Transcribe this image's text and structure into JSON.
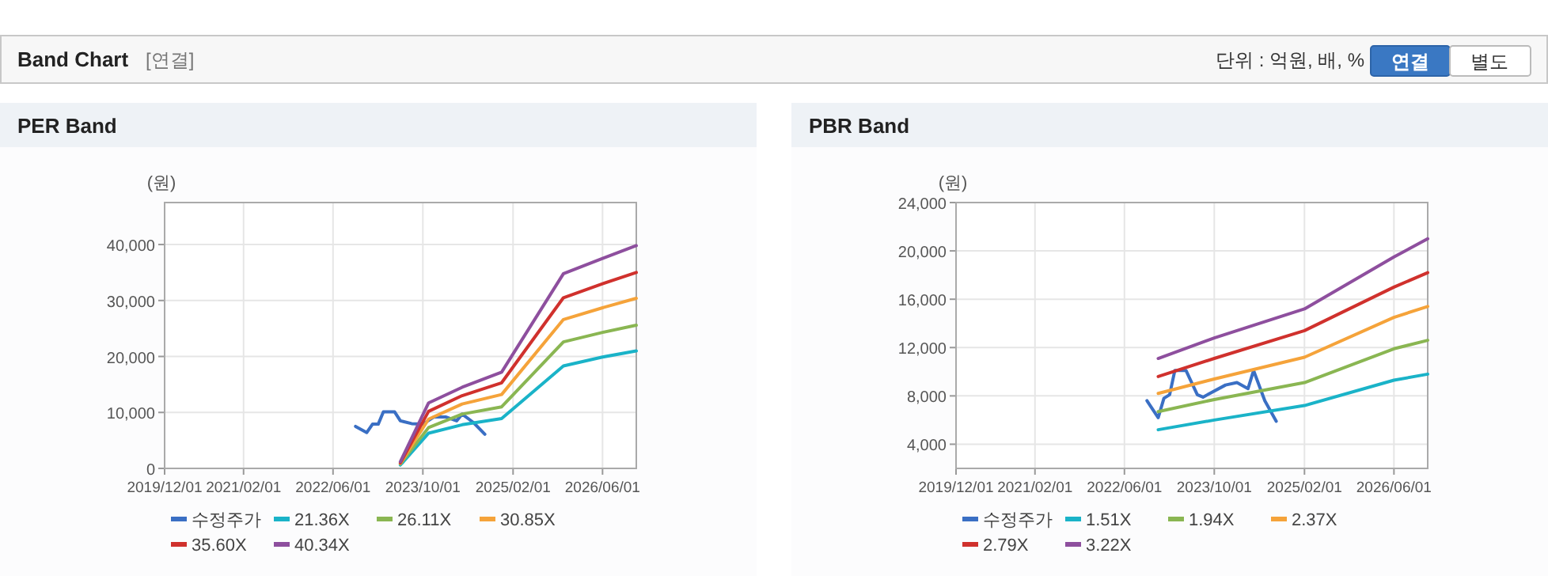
{
  "chart_data": [
    {
      "type": "other",
      "title": "Band Chart",
      "annotations": [
        "[연결]",
        "단위 : 억원, 배, %",
        "연결",
        "별도"
      ]
    },
    {
      "type": "line",
      "title": "PER Band",
      "ylabel": "(원)",
      "xlim": [
        "2019-12-01",
        "2026-12-01"
      ],
      "xticks": [
        {
          "value": "2019-12-01",
          "label": "2019/12/01"
        },
        {
          "value": "2021-02-01",
          "label": "2021/02/01"
        },
        {
          "value": "2022-06-01",
          "label": "2022/06/01"
        },
        {
          "value": "2023-10-01",
          "label": "2023/10/01"
        },
        {
          "value": "2025-02-01",
          "label": "2025/02/01"
        },
        {
          "value": "2026-06-01",
          "label": "2026/06/01"
        }
      ],
      "ylim": [
        0,
        47500
      ],
      "yticks": [
        {
          "value": 0,
          "label": "0"
        },
        {
          "value": 10000,
          "label": "10,000"
        },
        {
          "value": 20000,
          "label": "20,000"
        },
        {
          "value": 30000,
          "label": "30,000"
        },
        {
          "value": 40000,
          "label": "40,000"
        }
      ],
      "grid": true,
      "legend": "bottom",
      "line_style": "solid",
      "series": [
        {
          "name": "수정주가",
          "color": "#3a6fc4",
          "x": [
            "2022-10",
            "2022-12",
            "2023-01",
            "2023-02",
            "2023-03",
            "2023-05",
            "2023-06",
            "2023-08",
            "2023-10",
            "2023-12",
            "2024-02",
            "2024-04",
            "2024-05",
            "2024-07",
            "2024-09"
          ],
          "values": [
            7500,
            6400,
            7900,
            7900,
            10100,
            10100,
            8500,
            8000,
            7900,
            9200,
            9200,
            8500,
            9700,
            8200,
            6100
          ]
        },
        {
          "name": "21.36X",
          "color": "#1ab3c8",
          "x": [
            "2023-06",
            "2023-11",
            "2024-05",
            "2024-12",
            "2025-11",
            "2026-06",
            "2026-12"
          ],
          "values": [
            600,
            6300,
            7800,
            8900,
            18300,
            19900,
            21000
          ]
        },
        {
          "name": "26.11X",
          "color": "#8ab652",
          "x": [
            "2023-06",
            "2023-11",
            "2024-05",
            "2024-12",
            "2025-11",
            "2026-06",
            "2026-12"
          ],
          "values": [
            800,
            7300,
            9700,
            11000,
            22600,
            24300,
            25600
          ]
        },
        {
          "name": "30.85X",
          "color": "#f5a33a",
          "x": [
            "2023-06",
            "2023-11",
            "2024-05",
            "2024-12",
            "2025-11",
            "2026-06",
            "2026-12"
          ],
          "values": [
            900,
            8800,
            11500,
            13200,
            26600,
            28700,
            30400
          ]
        },
        {
          "name": "35.60X",
          "color": "#d0312d",
          "x": [
            "2023-06",
            "2023-11",
            "2024-05",
            "2024-12",
            "2025-11",
            "2026-06",
            "2026-12"
          ],
          "values": [
            1000,
            10200,
            13000,
            15300,
            30500,
            33000,
            35000
          ]
        },
        {
          "name": "40.34X",
          "color": "#8e4f9e",
          "x": [
            "2023-06",
            "2023-11",
            "2024-05",
            "2024-12",
            "2025-11",
            "2026-06",
            "2026-12"
          ],
          "values": [
            1200,
            11700,
            14500,
            17200,
            34800,
            37500,
            39800
          ]
        }
      ]
    },
    {
      "type": "line",
      "title": "PBR Band",
      "ylabel": "(원)",
      "xlim": [
        "2019-12-01",
        "2026-12-01"
      ],
      "xticks": [
        {
          "value": "2019-12-01",
          "label": "2019/12/01"
        },
        {
          "value": "2021-02-01",
          "label": "2021/02/01"
        },
        {
          "value": "2022-06-01",
          "label": "2022/06/01"
        },
        {
          "value": "2023-10-01",
          "label": "2023/10/01"
        },
        {
          "value": "2025-02-01",
          "label": "2025/02/01"
        },
        {
          "value": "2026-06-01",
          "label": "2026/06/01"
        }
      ],
      "ylim": [
        2000,
        24000
      ],
      "yticks": [
        {
          "value": 4000,
          "label": "4,000"
        },
        {
          "value": 8000,
          "label": "8,000"
        },
        {
          "value": 12000,
          "label": "12,000"
        },
        {
          "value": 16000,
          "label": "16,000"
        },
        {
          "value": 20000,
          "label": "20,000"
        },
        {
          "value": 24000,
          "label": "24,000"
        }
      ],
      "grid": true,
      "legend": "bottom",
      "line_style": "solid",
      "series": [
        {
          "name": "수정주가",
          "color": "#3a6fc4",
          "x": [
            "2022-10",
            "2022-12",
            "2023-01",
            "2023-02",
            "2023-03",
            "2023-05",
            "2023-07",
            "2023-08",
            "2023-12",
            "2024-02",
            "2024-04",
            "2024-05",
            "2024-07",
            "2024-09"
          ],
          "values": [
            7600,
            6200,
            7800,
            8100,
            10100,
            10100,
            8100,
            7900,
            8900,
            9100,
            8600,
            10100,
            7600,
            5900
          ]
        },
        {
          "name": "1.51X",
          "color": "#1ab3c8",
          "x": [
            "2022-12",
            "2023-10",
            "2025-02",
            "2026-06",
            "2026-12"
          ],
          "values": [
            5200,
            6000,
            7200,
            9300,
            9800
          ]
        },
        {
          "name": "1.94X",
          "color": "#8ab652",
          "x": [
            "2022-12",
            "2023-10",
            "2025-02",
            "2026-06",
            "2026-12"
          ],
          "values": [
            6700,
            7700,
            9100,
            11900,
            12600
          ]
        },
        {
          "name": "2.37X",
          "color": "#f5a33a",
          "x": [
            "2022-12",
            "2023-10",
            "2025-02",
            "2026-06",
            "2026-12"
          ],
          "values": [
            8200,
            9400,
            11200,
            14500,
            15400
          ]
        },
        {
          "name": "2.79X",
          "color": "#d0312d",
          "x": [
            "2022-12",
            "2023-10",
            "2025-02",
            "2026-06",
            "2026-12"
          ],
          "values": [
            9600,
            11100,
            13400,
            17000,
            18200
          ]
        },
        {
          "name": "3.22X",
          "color": "#8e4f9e",
          "x": [
            "2022-12",
            "2023-10",
            "2025-02",
            "2026-06",
            "2026-12"
          ],
          "values": [
            11100,
            12800,
            15200,
            19500,
            21000
          ]
        }
      ]
    }
  ]
}
